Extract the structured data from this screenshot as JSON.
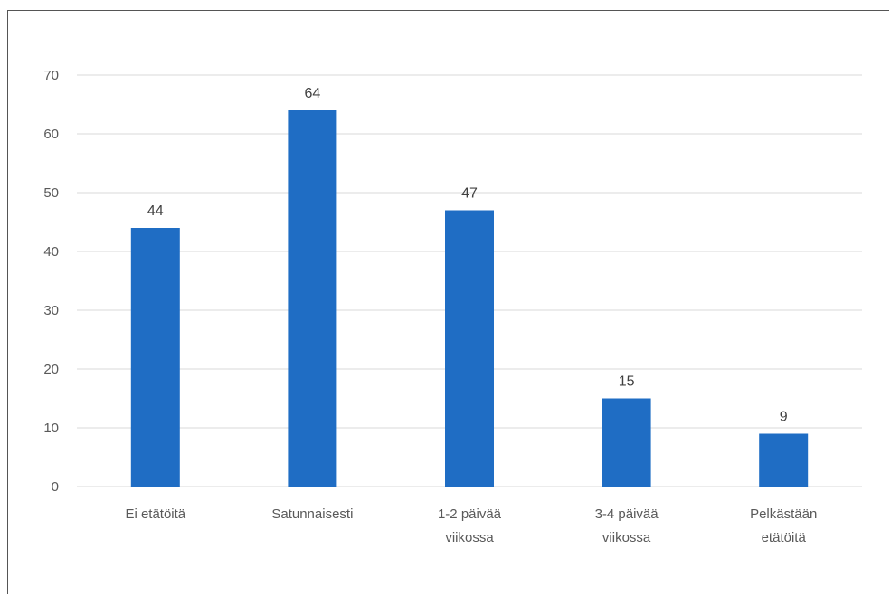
{
  "chart_data": {
    "type": "bar",
    "categories": [
      [
        "Ei etätöitä"
      ],
      [
        "Satunnaisesti"
      ],
      [
        "1-2 päivää",
        "viikossa"
      ],
      [
        "3-4 päivää",
        "viikossa"
      ],
      [
        "Pelkästään",
        "etätöitä"
      ]
    ],
    "values": [
      44,
      64,
      47,
      15,
      9
    ],
    "data_labels": [
      "44",
      "64",
      "47",
      "15",
      "9"
    ],
    "y_ticks": [
      "0",
      "10",
      "20",
      "30",
      "40",
      "50",
      "60",
      "70"
    ],
    "ylim": [
      0,
      70
    ],
    "grid": true,
    "legend": "none",
    "bar_color": "#1f6dc4",
    "grid_color": "#d9d9d9"
  }
}
